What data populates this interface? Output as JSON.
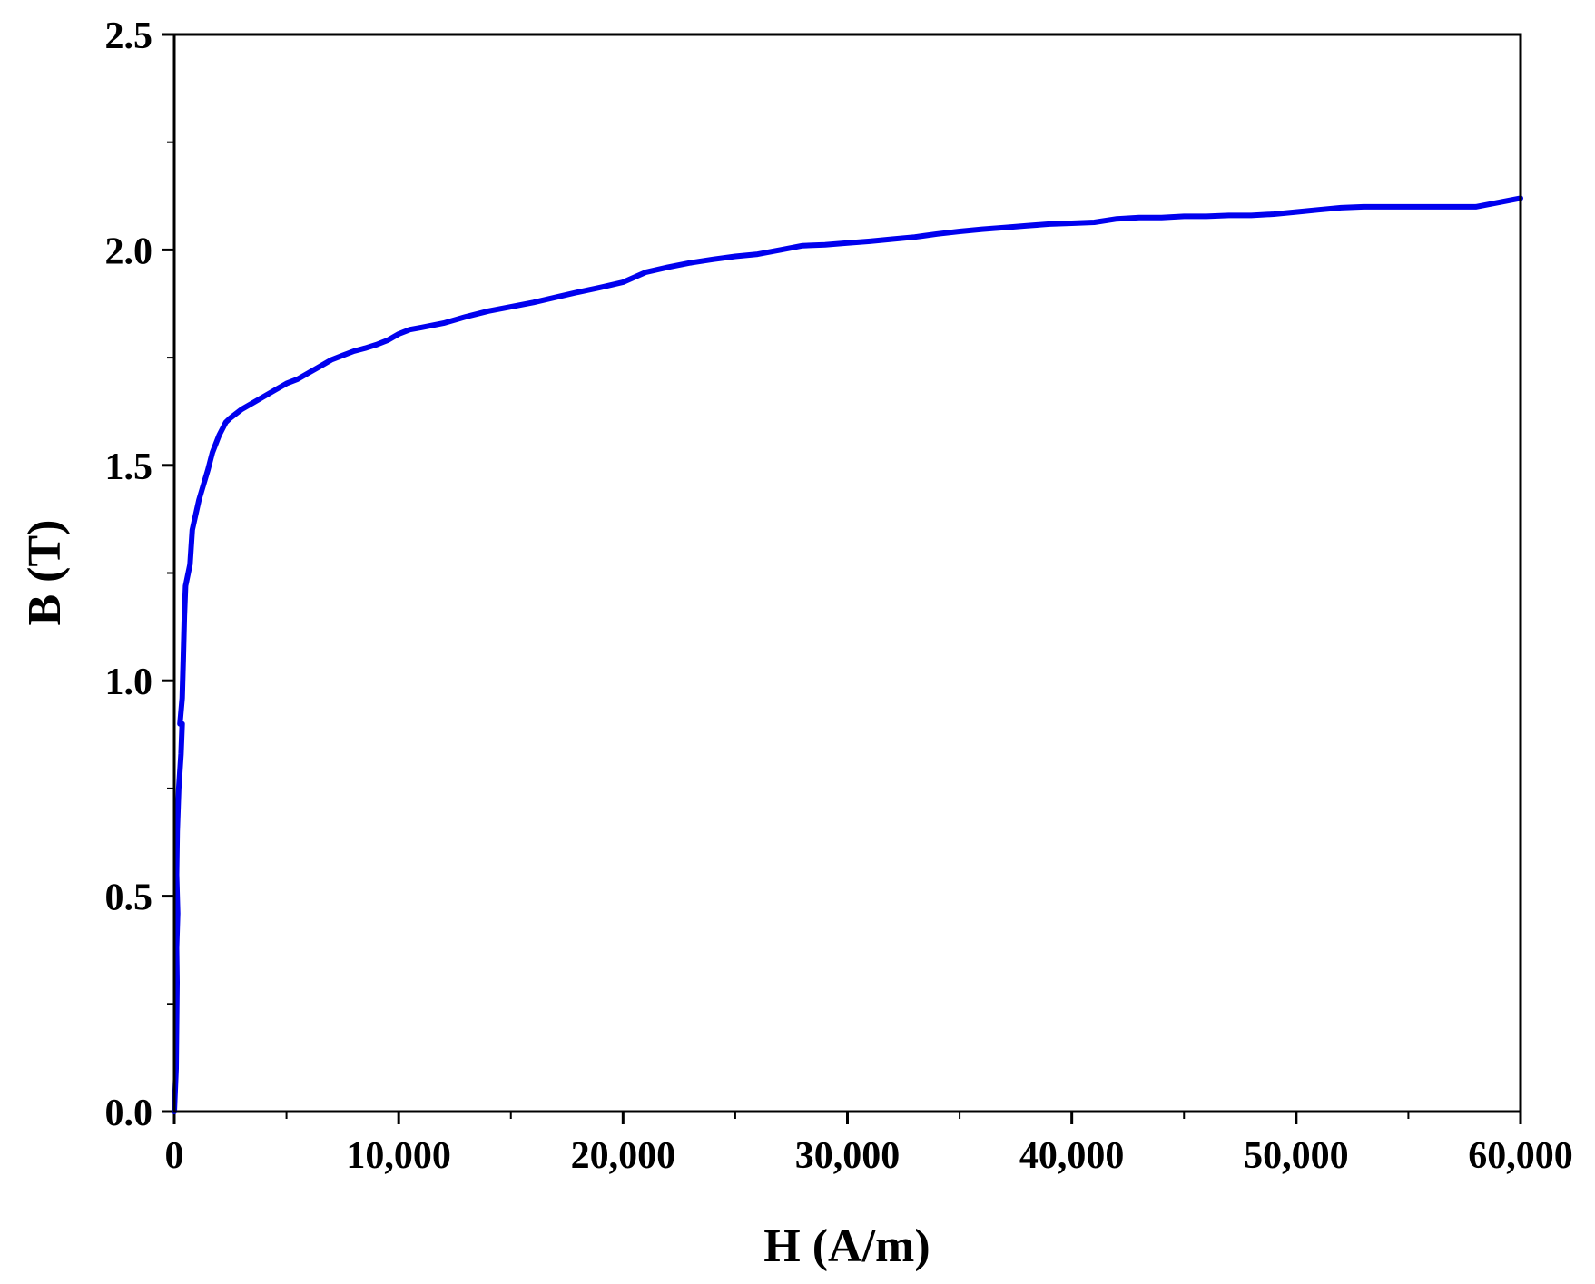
{
  "chart_data": {
    "type": "line",
    "title": "",
    "xlabel": "H (A/m)",
    "ylabel": "B (T)",
    "xlim": [
      0,
      60000
    ],
    "ylim": [
      0,
      2.5
    ],
    "x_ticks": [
      0,
      10000,
      20000,
      30000,
      40000,
      50000,
      60000
    ],
    "x_tick_labels": [
      "0",
      "10,000",
      "20,000",
      "30,000",
      "40,000",
      "50,000",
      "60,000"
    ],
    "y_ticks": [
      0.0,
      0.5,
      1.0,
      1.5,
      2.0,
      2.5
    ],
    "y_tick_labels": [
      "0.0",
      "0.5",
      "1.0",
      "1.5",
      "2.0",
      "2.5"
    ],
    "grid": false,
    "legend": "none",
    "series": [
      {
        "color": "#0000ee",
        "x": [
          0,
          80,
          100,
          120,
          100,
          150,
          100,
          130,
          200,
          300,
          350,
          250,
          350,
          400,
          450,
          500,
          700,
          800,
          1100,
          1500,
          1700,
          2000,
          2300,
          2500,
          3000,
          3500,
          4000,
          4500,
          5000,
          5500,
          6000,
          6500,
          7000,
          7500,
          8000,
          8500,
          9000,
          9500,
          10000,
          10500,
          11000,
          12000,
          13000,
          14000,
          15000,
          16000,
          17000,
          18000,
          19000,
          20000,
          21000,
          22000,
          23000,
          24000,
          25000,
          26000,
          27000,
          28000,
          29000,
          30000,
          31000,
          32000,
          33000,
          34000,
          35000,
          36000,
          37000,
          38000,
          39000,
          40000,
          41000,
          42000,
          43000,
          44000,
          45000,
          46000,
          47000,
          48000,
          49000,
          50000,
          51000,
          52000,
          53000,
          54000,
          55000,
          56000,
          57000,
          58000,
          59000,
          60000
        ],
        "y": [
          0.0,
          0.1,
          0.2,
          0.3,
          0.38,
          0.46,
          0.55,
          0.65,
          0.75,
          0.83,
          0.9,
          0.9,
          0.96,
          1.05,
          1.15,
          1.22,
          1.27,
          1.35,
          1.42,
          1.49,
          1.53,
          1.57,
          1.6,
          1.61,
          1.63,
          1.645,
          1.66,
          1.675,
          1.69,
          1.7,
          1.715,
          1.73,
          1.745,
          1.755,
          1.765,
          1.772,
          1.78,
          1.79,
          1.805,
          1.815,
          1.82,
          1.83,
          1.845,
          1.858,
          1.868,
          1.878,
          1.89,
          1.902,
          1.913,
          1.925,
          1.948,
          1.96,
          1.97,
          1.978,
          1.985,
          1.99,
          2.0,
          2.01,
          2.012,
          2.016,
          2.02,
          2.025,
          2.03,
          2.037,
          2.043,
          2.048,
          2.052,
          2.056,
          2.06,
          2.062,
          2.064,
          2.072,
          2.075,
          2.075,
          2.078,
          2.078,
          2.08,
          2.08,
          2.083,
          2.088,
          2.093,
          2.098,
          2.1,
          2.1,
          2.1,
          2.1,
          2.1,
          2.1,
          2.11,
          2.12
        ]
      }
    ]
  }
}
